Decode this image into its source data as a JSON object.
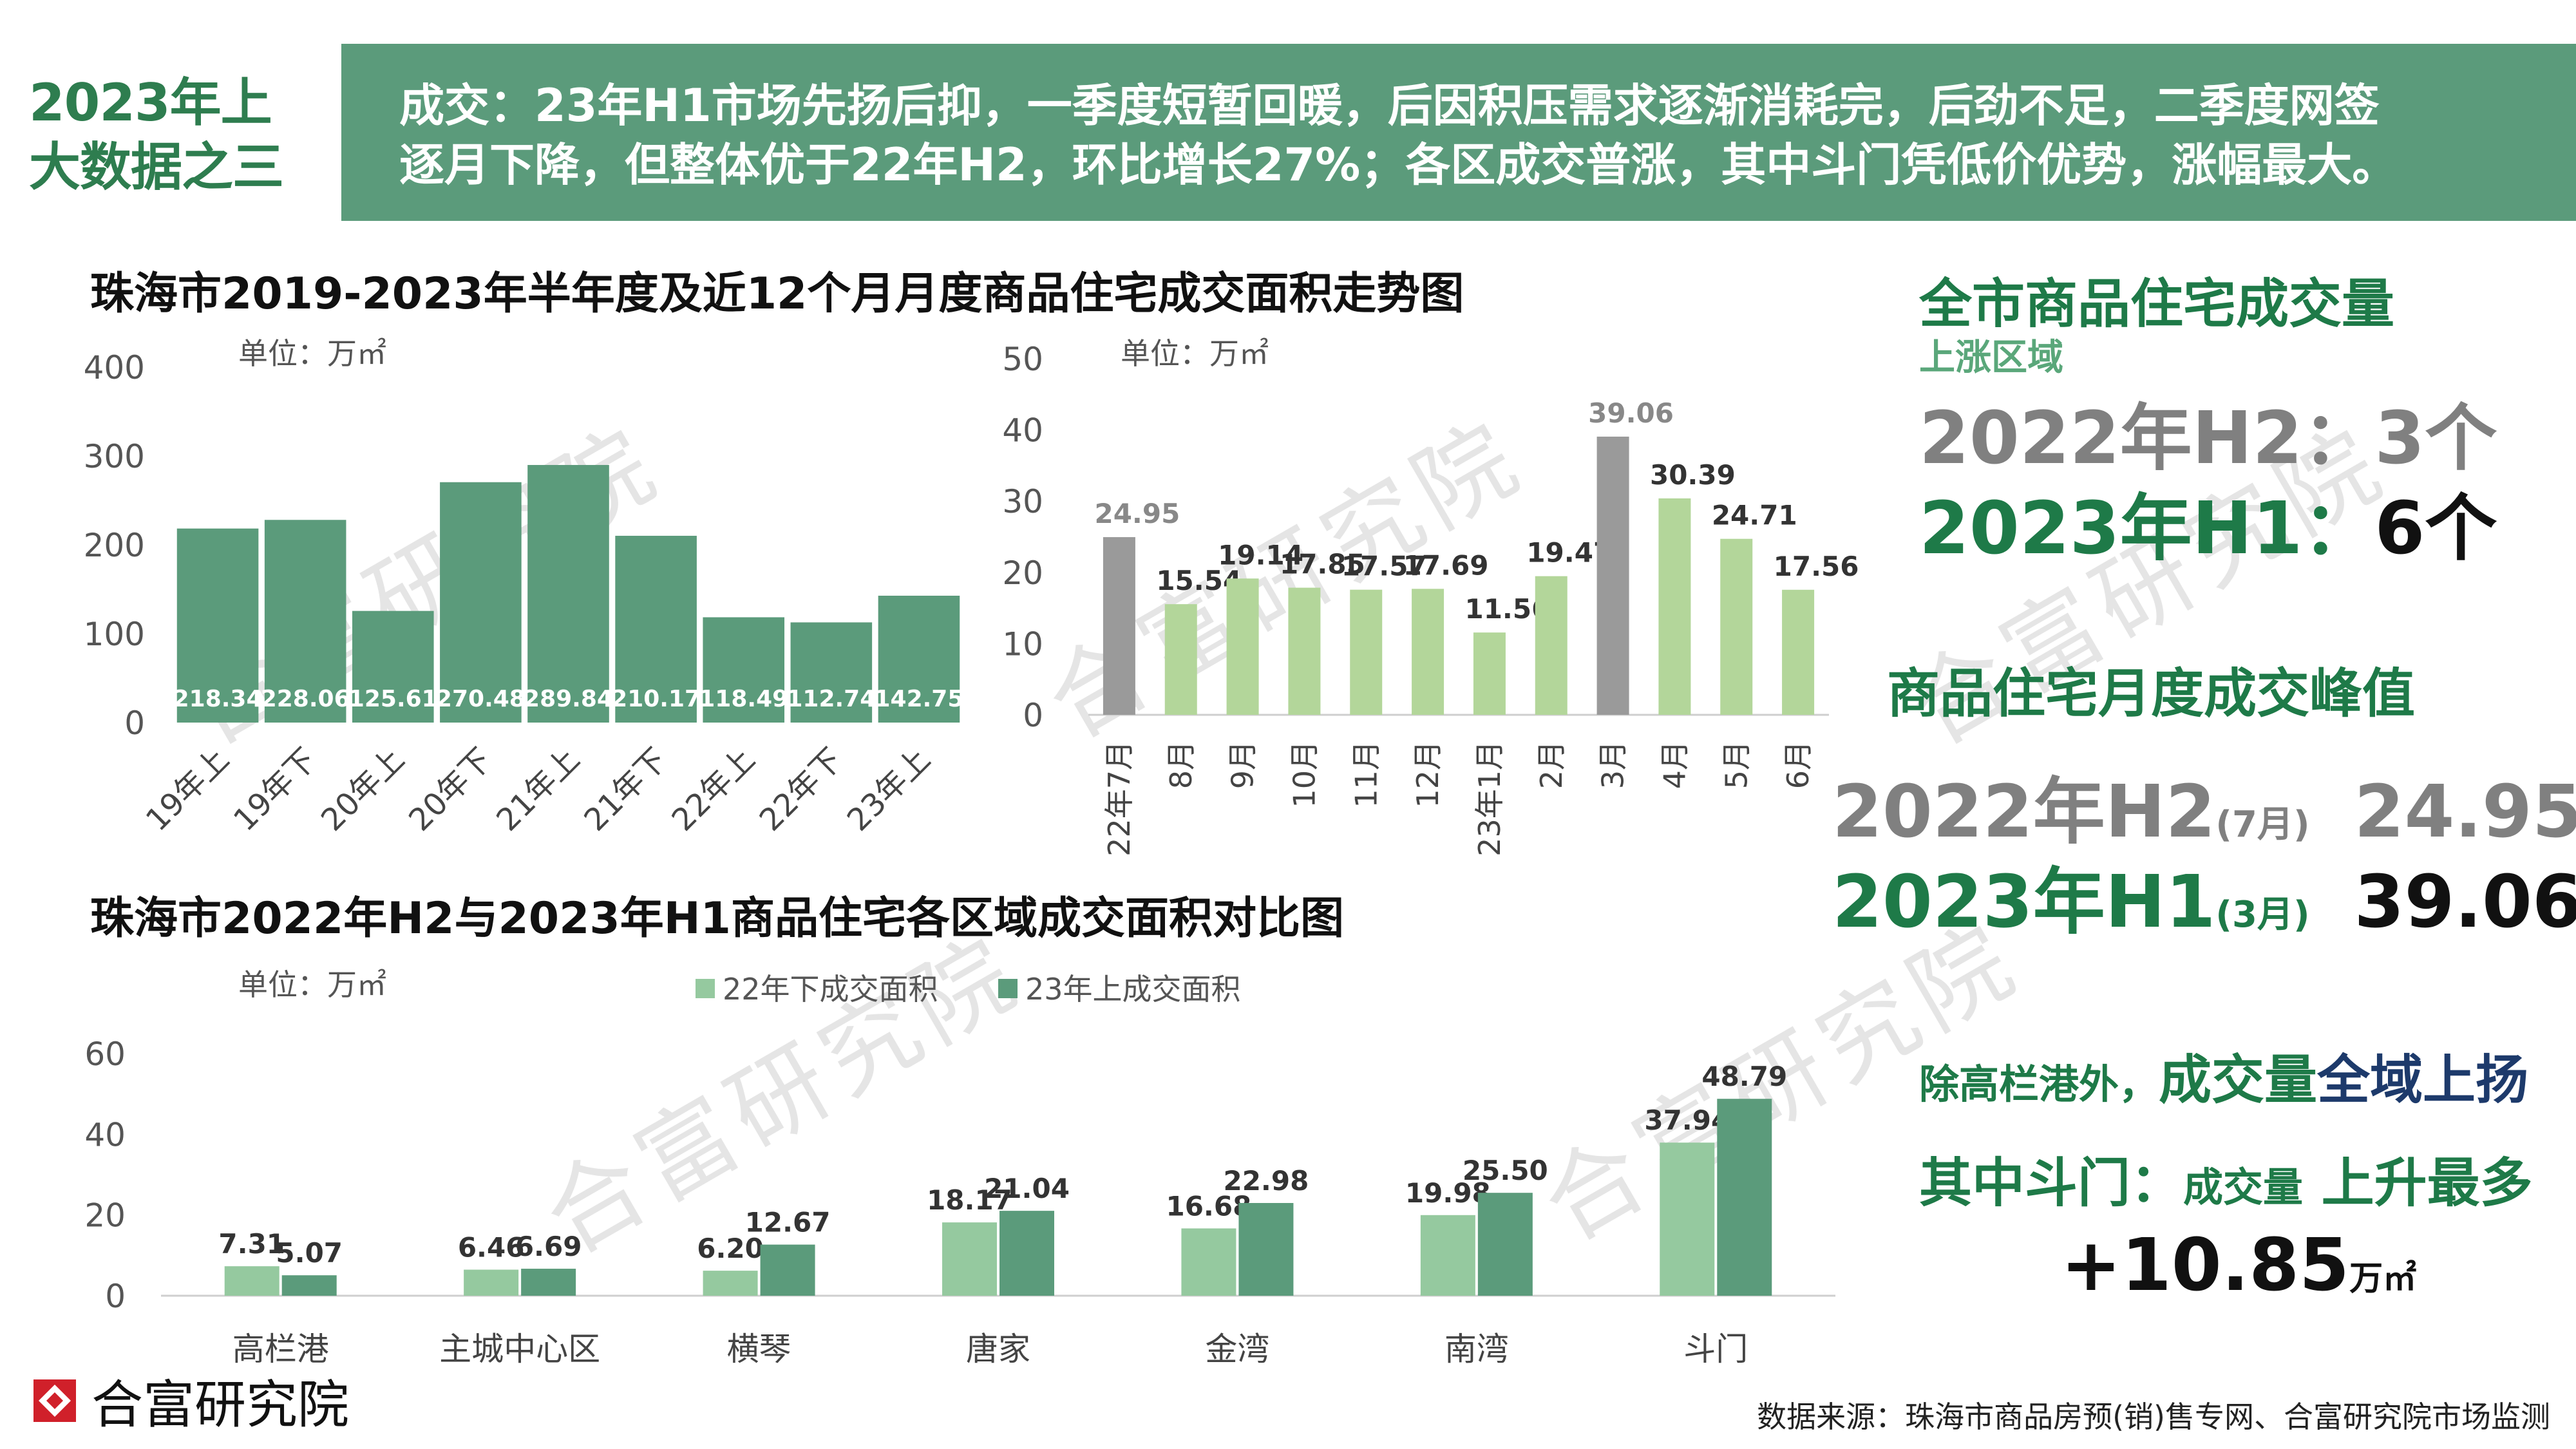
{
  "header": {
    "badge_line1": "2023年上",
    "badge_line2": "大数据之三",
    "banner_line1": "成交：23年H1市场先扬后抑，一季度短暂回暖，后因积压需求逐渐消耗完，后劲不足，二季度网签",
    "banner_line2": "逐月下降，但整体优于22年H2，环比增长27%；各区成交普涨，其中斗门凭低价优势，涨幅最大。"
  },
  "chart1": {
    "title": "珠海市2019-2023年半年度及近12个月月度商品住宅成交面积走势图"
  },
  "chart3": {
    "title": "珠海市2022年H2与2023年H1商品住宅各区域成交面积对比图"
  },
  "chart_data": [
    {
      "type": "bar",
      "unit": "单位：万㎡",
      "categories": [
        "19年上",
        "19年下",
        "20年上",
        "20年下",
        "21年上",
        "21年下",
        "22年上",
        "22年下",
        "23年上"
      ],
      "values": [
        218.34,
        228.06,
        125.61,
        270.48,
        289.84,
        210.17,
        118.49,
        112.74,
        142.75
      ],
      "ylim": [
        0,
        400
      ],
      "yticks": [
        0,
        100,
        200,
        300,
        400
      ],
      "color": "#5b9b7b"
    },
    {
      "type": "bar",
      "unit": "单位：万㎡",
      "categories": [
        "22年7月",
        "8月",
        "9月",
        "10月",
        "11月",
        "12月",
        "23年1月",
        "2月",
        "3月",
        "4月",
        "5月",
        "6月"
      ],
      "values": [
        24.95,
        15.54,
        19.14,
        17.85,
        17.57,
        17.69,
        11.56,
        19.47,
        39.06,
        30.39,
        24.71,
        17.56
      ],
      "highlight": [
        0,
        8
      ],
      "ylim": [
        0,
        50
      ],
      "yticks": [
        0,
        10,
        20,
        30,
        40,
        50
      ],
      "color": "#b3d69a",
      "highlight_color": "#9a9a9a"
    },
    {
      "type": "bar",
      "unit": "单位：万㎡",
      "categories": [
        "高栏港",
        "主城中心区",
        "横琴",
        "唐家",
        "金湾",
        "南湾",
        "斗门"
      ],
      "series": [
        {
          "name": "22年下成交面积",
          "values": [
            7.31,
            6.46,
            6.2,
            18.17,
            16.68,
            19.98,
            37.94
          ],
          "color": "#95c99f"
        },
        {
          "name": "23年上成交面积",
          "values": [
            5.07,
            6.69,
            12.67,
            21.04,
            22.98,
            25.5,
            48.79
          ],
          "color": "#5b9b7b"
        }
      ],
      "ylim": [
        0,
        60
      ],
      "yticks": [
        0,
        20,
        40,
        60
      ]
    }
  ],
  "right_panel": {
    "title1": "全市商品住宅成交量",
    "subtitle1": "上涨区域",
    "h2_line_label": "2022年H2：",
    "h2_line_value": "3个",
    "h1_line_label": "2023年H1：",
    "h1_line_value": "6个",
    "title2": "商品住宅月度成交峰值",
    "peak_h2_label": "2022年H2",
    "peak_h2_month": "(7月)",
    "peak_h2_value": "24.95",
    "peak_h1_label": "2023年H1",
    "peak_h1_month": "(3月)",
    "peak_h1_value": "39.06",
    "unit": "万㎡",
    "note1_a": "除高栏港外，",
    "note1_b": "成交量",
    "note1_c": "全域上扬",
    "note2_a": "其中斗门：",
    "note2_b": "成交量",
    "note2_c": " 上升最多",
    "increase_value": "+10.85"
  },
  "footer": {
    "source": "数据来源：珠海市商品房预(销)售专网、合富研究院市场监测",
    "logo_text": "合富研究院",
    "watermark": "合富研究院"
  }
}
